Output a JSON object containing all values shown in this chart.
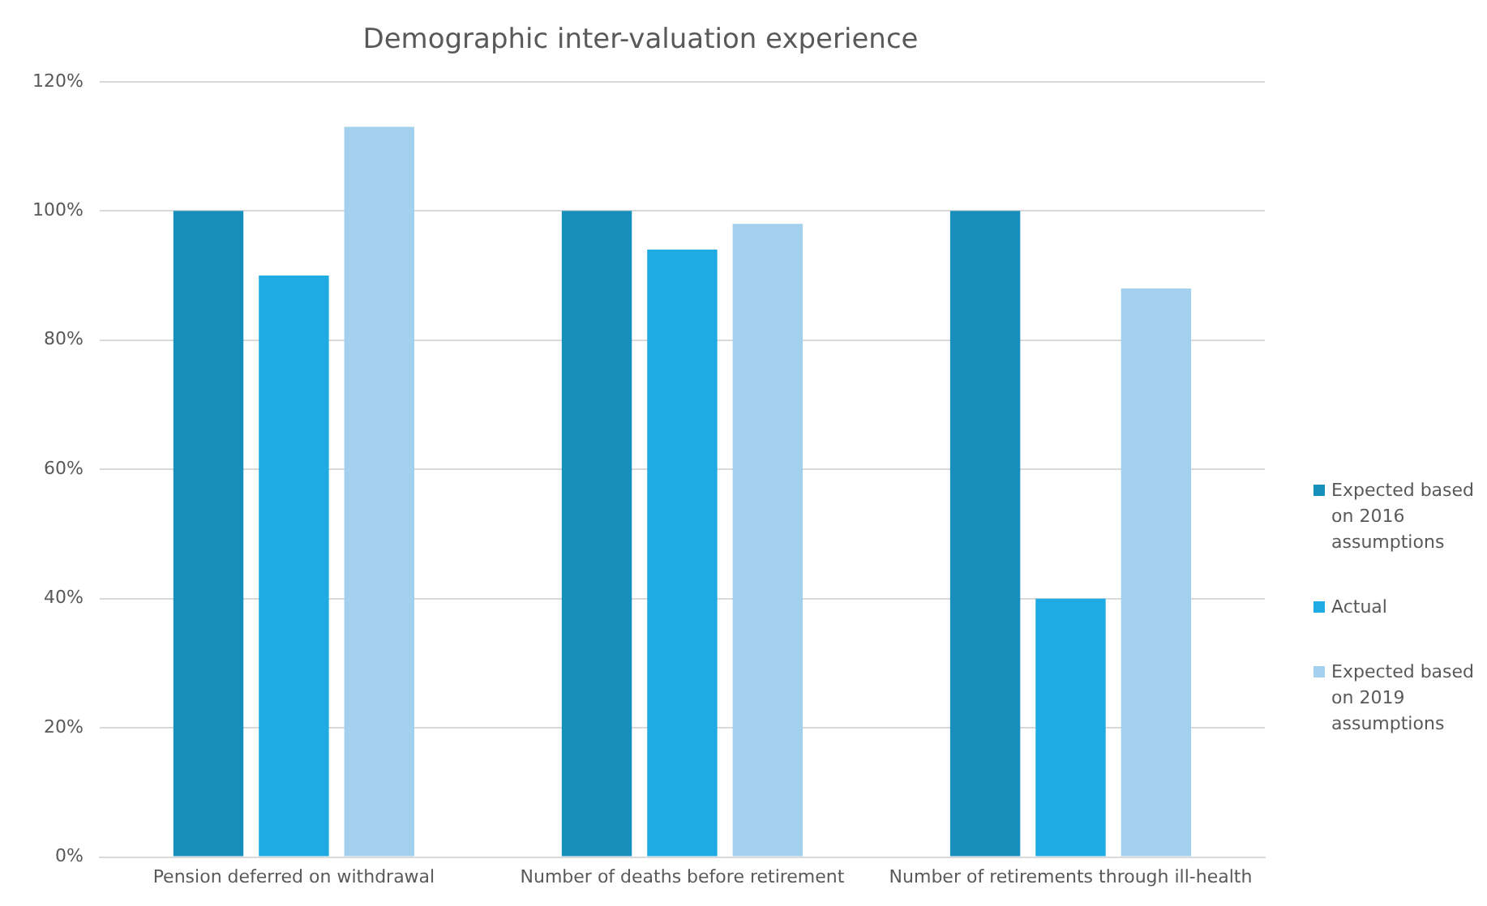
{
  "chart_data": {
    "type": "bar",
    "title": "Demographic inter-valuation experience",
    "categories": [
      "Pension deferred on withdrawal",
      "Number of deaths before retirement",
      "Number of retirements through ill-health"
    ],
    "series": [
      {
        "name": "Expected based on 2016 assumptions",
        "color": "#168fbd",
        "values": [
          100,
          100,
          100
        ]
      },
      {
        "name": "Actual",
        "color": "#1eabe3",
        "values": [
          90,
          94,
          40
        ]
      },
      {
        "name": "Expected based on 2019 assumptions",
        "color": "#a2d0ed",
        "values": [
          113,
          98,
          88
        ]
      }
    ],
    "ylim": [
      0,
      120
    ],
    "yticks": [
      {
        "value": 0,
        "label": "0%"
      },
      {
        "value": 20,
        "label": "20%"
      },
      {
        "value": 40,
        "label": "40%"
      },
      {
        "value": 60,
        "label": "60%"
      },
      {
        "value": 80,
        "label": "80%"
      },
      {
        "value": 100,
        "label": "100%"
      },
      {
        "value": 120,
        "label": "120%"
      }
    ],
    "grid": "y",
    "legend": "right"
  }
}
